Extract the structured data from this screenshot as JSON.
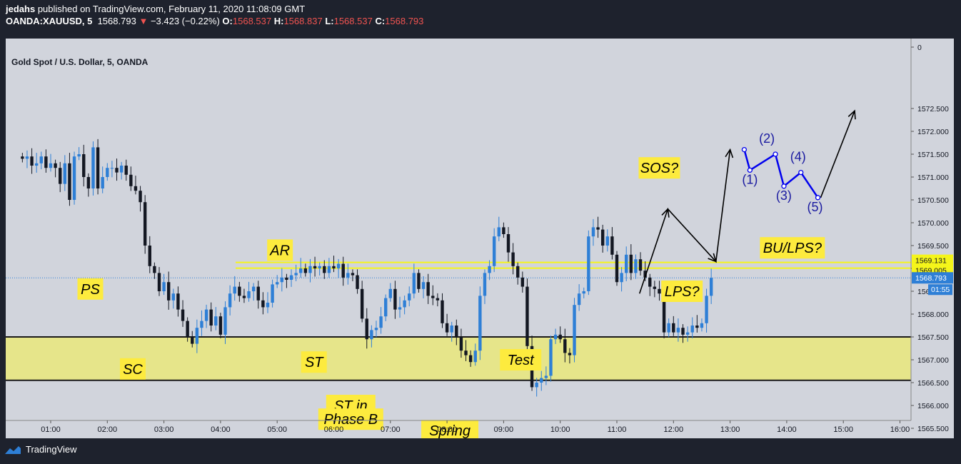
{
  "header": {
    "author": "jedahs",
    "published_text": "published on TradingView.com, February 11, 2020 11:08:09 GMT",
    "symbol": "OANDA:XAUUSD, 5",
    "last": "1568.793",
    "change": "−3.423 (−0.22%)",
    "o_label": "O:",
    "o_value": "1568.537",
    "h_label": "H:",
    "h_value": "1568.837",
    "l_label": "L:",
    "l_value": "1568.537",
    "c_label": "C:",
    "c_value": "1568.793"
  },
  "chart_title": "Gold Spot / U.S. Dollar, 5, OANDA",
  "footer": {
    "brand": "TradingView"
  },
  "colors": {
    "up": "#2e7fd6",
    "down": "#131722",
    "zone": "#e6e58a",
    "label_bg": "#fdeb3e",
    "wave": "#0000ee",
    "price_tag": "#2e7fd6"
  },
  "chart_data": {
    "type": "candlestick",
    "title": "Gold Spot / U.S. Dollar, 5, OANDA",
    "ylim": [
      1564.8,
      1573.0
    ],
    "xlim": [
      "00:20",
      "16:05"
    ],
    "y_ticks": [
      "0",
      "1572.500",
      "1572.000",
      "1571.500",
      "1571.000",
      "1570.500",
      "1570.000",
      "1569.500",
      "1569.000",
      "1568.500",
      "1568.000",
      "1567.500",
      "1567.000",
      "1566.500",
      "1566.000",
      "1565.500",
      "1565.000"
    ],
    "y_tick_values": [
      1572.9,
      1572.5,
      1572.0,
      1571.5,
      1571.0,
      1570.5,
      1570.0,
      1569.5,
      1569.0,
      1568.5,
      1568.0,
      1567.5,
      1567.0,
      1566.5,
      1566.0,
      1565.5,
      1565.0
    ],
    "x_ticks": [
      "01:00",
      "02:00",
      "03:00",
      "04:00",
      "05:00",
      "06:00",
      "07:00",
      "08:00",
      "09:00",
      "10:00",
      "11:00",
      "12:00",
      "13:00",
      "14:00",
      "15:00",
      "16:00"
    ],
    "x_tick_hours": [
      1,
      2,
      3,
      4,
      5,
      6,
      7,
      8,
      9,
      10,
      11,
      12,
      13,
      14,
      15,
      16
    ],
    "first_candle_hour": 0.5,
    "candle_interval_min": 5,
    "closes": [
      1571.4,
      1571.45,
      1571.25,
      1571.3,
      1571.45,
      1571.2,
      1571.3,
      1571.2,
      1570.85,
      1571.3,
      1570.5,
      1571.45,
      1571.5,
      1571.0,
      1570.75,
      1571.65,
      1570.75,
      1571.0,
      1571.2,
      1571.2,
      1571.1,
      1571.25,
      1571.05,
      1570.8,
      1570.7,
      1570.45,
      1569.5,
      1569.05,
      1568.9,
      1568.5,
      1568.7,
      1568.3,
      1568.45,
      1568.1,
      1567.85,
      1567.5,
      1567.35,
      1567.7,
      1567.85,
      1568.1,
      1567.75,
      1567.95,
      1567.55,
      1568.15,
      1568.45,
      1568.6,
      1568.4,
      1568.35,
      1568.5,
      1568.6,
      1568.3,
      1568.15,
      1568.25,
      1568.65,
      1568.7,
      1568.8,
      1568.75,
      1568.85,
      1568.9,
      1569.0,
      1568.9,
      1569.05,
      1569.0,
      1569.05,
      1568.9,
      1569.05,
      1569.0,
      1569.1,
      1568.8,
      1568.9,
      1568.85,
      1568.55,
      1567.9,
      1567.45,
      1567.65,
      1567.7,
      1567.95,
      1568.35,
      1568.55,
      1568.1,
      1568.15,
      1568.3,
      1568.45,
      1568.9,
      1568.55,
      1568.7,
      1568.4,
      1568.35,
      1568.3,
      1567.8,
      1567.6,
      1567.75,
      1567.5,
      1567.2,
      1567.1,
      1566.95,
      1567.2,
      1568.4,
      1568.9,
      1569.05,
      1569.7,
      1569.9,
      1569.75,
      1569.35,
      1569.05,
      1568.8,
      1568.6,
      1567.3,
      1566.4,
      1566.5,
      1566.6,
      1566.65,
      1567.45,
      1567.55,
      1567.45,
      1567.15,
      1567.1,
      1568.2,
      1568.45,
      1568.5,
      1569.7,
      1569.9,
      1569.85,
      1569.5,
      1569.7,
      1569.3,
      1568.7,
      1568.9,
      1569.3,
      1568.9,
      1569.2,
      1568.95,
      1568.8,
      1568.6,
      1568.55,
      1568.45,
      1567.6,
      1567.8,
      1567.6,
      1567.7,
      1567.55,
      1567.6,
      1567.75,
      1567.7,
      1567.8,
      1568.4,
      1568.793
    ],
    "zone": {
      "low": 1566.55,
      "high": 1567.5
    },
    "resistance_lines": [
      1569.131,
      1569.005
    ],
    "current_price_line": 1568.793,
    "price_tags": [
      "1569.131",
      "1569.005",
      "1568.793"
    ],
    "countdown": "01:55",
    "annotations": [
      {
        "label": "PS",
        "time": 1.7,
        "price": 1568.55
      },
      {
        "label": "SC",
        "time": 2.45,
        "price": 1566.8
      },
      {
        "label": "AR",
        "time": 5.05,
        "price": 1569.4
      },
      {
        "label": "ST",
        "time": 5.65,
        "price": 1566.95
      },
      {
        "label": "ST in",
        "time": 6.3,
        "price": 1566.0
      },
      {
        "label": "Phase B",
        "time": 6.3,
        "price": 1565.7
      },
      {
        "label": "Spring",
        "time": 8.05,
        "price": 1565.45
      },
      {
        "label": "Test",
        "time": 9.3,
        "price": 1567.0
      },
      {
        "label": "SOS?",
        "time": 11.75,
        "price": 1571.2
      },
      {
        "label": "BU/LPS?",
        "time": 14.1,
        "price": 1569.45
      },
      {
        "label": "LPS?",
        "time": 12.15,
        "price": 1568.5
      }
    ],
    "projection_path": [
      [
        11.4,
        1568.45
      ],
      [
        11.9,
        1570.3
      ],
      [
        12.75,
        1569.15
      ],
      [
        13.0,
        1571.6
      ]
    ],
    "final_arrow": [
      [
        14.6,
        1570.55
      ],
      [
        15.2,
        1572.45
      ]
    ],
    "wave_path": [
      [
        13.25,
        1571.6
      ],
      [
        13.35,
        1571.15
      ],
      [
        13.8,
        1571.5
      ],
      [
        13.95,
        1570.8
      ],
      [
        14.25,
        1571.1
      ],
      [
        14.55,
        1570.55
      ]
    ],
    "wave_labels": [
      {
        "label": "(1)",
        "time": 13.35,
        "price": 1570.85
      },
      {
        "label": "(2)",
        "time": 13.65,
        "price": 1571.75
      },
      {
        "label": "(3)",
        "time": 13.95,
        "price": 1570.5
      },
      {
        "label": "(4)",
        "time": 14.2,
        "price": 1571.35
      },
      {
        "label": "(5)",
        "time": 14.5,
        "price": 1570.25
      }
    ]
  }
}
